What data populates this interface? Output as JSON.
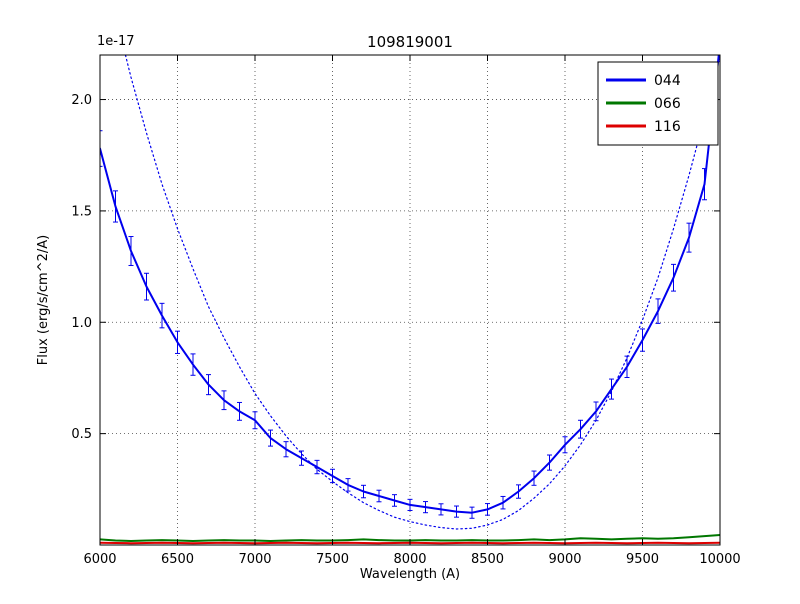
{
  "chart_data": {
    "type": "line",
    "title": "109819001",
    "xlabel": "Wavelength (A)",
    "ylabel": "Flux (erg/s/cm^2/A)",
    "y_offset_label": "1e-17",
    "xlim": [
      6000,
      10000
    ],
    "ylim": [
      0,
      2.2
    ],
    "xticks": [
      6000,
      6500,
      7000,
      7500,
      8000,
      8500,
      9000,
      9500,
      10000
    ],
    "yticks": [
      0.5,
      1.0,
      1.5,
      2.0
    ],
    "grid": true,
    "legend_position": "upper right",
    "x": [
      6000,
      6100,
      6200,
      6300,
      6400,
      6500,
      6600,
      6700,
      6800,
      6900,
      7000,
      7100,
      7200,
      7300,
      7400,
      7500,
      7600,
      7700,
      7800,
      7900,
      8000,
      8100,
      8200,
      8300,
      8400,
      8500,
      8600,
      8700,
      8800,
      8900,
      9000,
      9100,
      9200,
      9300,
      9400,
      9500,
      9600,
      9700,
      9800,
      9900,
      10000
    ],
    "series": [
      {
        "name": "044",
        "color": "#0000ee",
        "style": "solid",
        "width": 2,
        "in_legend": true,
        "values": [
          1.78,
          1.52,
          1.32,
          1.16,
          1.03,
          0.91,
          0.81,
          0.72,
          0.65,
          0.6,
          0.56,
          0.48,
          0.43,
          0.39,
          0.35,
          0.31,
          0.27,
          0.24,
          0.22,
          0.2,
          0.18,
          0.17,
          0.16,
          0.15,
          0.145,
          0.16,
          0.19,
          0.24,
          0.3,
          0.37,
          0.45,
          0.52,
          0.6,
          0.7,
          0.8,
          0.92,
          1.05,
          1.2,
          1.38,
          1.62,
          2.25
        ],
        "yerr": [
          0.08,
          0.07,
          0.065,
          0.06,
          0.055,
          0.05,
          0.048,
          0.045,
          0.042,
          0.04,
          0.038,
          0.036,
          0.034,
          0.032,
          0.03,
          0.03,
          0.028,
          0.028,
          0.026,
          0.026,
          0.025,
          0.025,
          0.025,
          0.025,
          0.025,
          0.026,
          0.028,
          0.03,
          0.032,
          0.034,
          0.036,
          0.04,
          0.042,
          0.045,
          0.048,
          0.05,
          0.055,
          0.06,
          0.065,
          0.07,
          0.08
        ]
      },
      {
        "name": "044-model-fit",
        "color": "#0000ee",
        "style": "dotted",
        "width": 1.2,
        "in_legend": false,
        "values": [
          2.65,
          2.38,
          2.1,
          1.85,
          1.62,
          1.42,
          1.24,
          1.07,
          0.93,
          0.8,
          0.68,
          0.58,
          0.49,
          0.41,
          0.34,
          0.285,
          0.235,
          0.19,
          0.155,
          0.125,
          0.105,
          0.09,
          0.078,
          0.072,
          0.075,
          0.09,
          0.115,
          0.155,
          0.21,
          0.275,
          0.355,
          0.45,
          0.56,
          0.69,
          0.84,
          1.01,
          1.2,
          1.42,
          1.66,
          1.92,
          2.2
        ]
      },
      {
        "name": "066",
        "color": "#007700",
        "style": "solid",
        "width": 2,
        "in_legend": true,
        "values": [
          0.025,
          0.02,
          0.018,
          0.02,
          0.022,
          0.02,
          0.018,
          0.02,
          0.022,
          0.02,
          0.02,
          0.018,
          0.02,
          0.022,
          0.02,
          0.02,
          0.022,
          0.025,
          0.022,
          0.02,
          0.02,
          0.022,
          0.02,
          0.02,
          0.022,
          0.02,
          0.02,
          0.022,
          0.025,
          0.022,
          0.025,
          0.03,
          0.028,
          0.025,
          0.028,
          0.03,
          0.028,
          0.03,
          0.035,
          0.04,
          0.045
        ]
      },
      {
        "name": "116",
        "color": "#dd0000",
        "style": "solid",
        "width": 2,
        "in_legend": true,
        "values": [
          0.01,
          0.009,
          0.008,
          0.009,
          0.01,
          0.009,
          0.008,
          0.009,
          0.01,
          0.009,
          0.008,
          0.009,
          0.01,
          0.009,
          0.008,
          0.009,
          0.01,
          0.009,
          0.008,
          0.009,
          0.01,
          0.009,
          0.008,
          0.009,
          0.01,
          0.009,
          0.008,
          0.009,
          0.01,
          0.009,
          0.008,
          0.009,
          0.01,
          0.009,
          0.008,
          0.009,
          0.01,
          0.009,
          0.008,
          0.009,
          0.01
        ]
      }
    ],
    "legend_entries": [
      {
        "label": "044",
        "color": "#0000ee"
      },
      {
        "label": "066",
        "color": "#007700"
      },
      {
        "label": "116",
        "color": "#dd0000"
      }
    ]
  }
}
